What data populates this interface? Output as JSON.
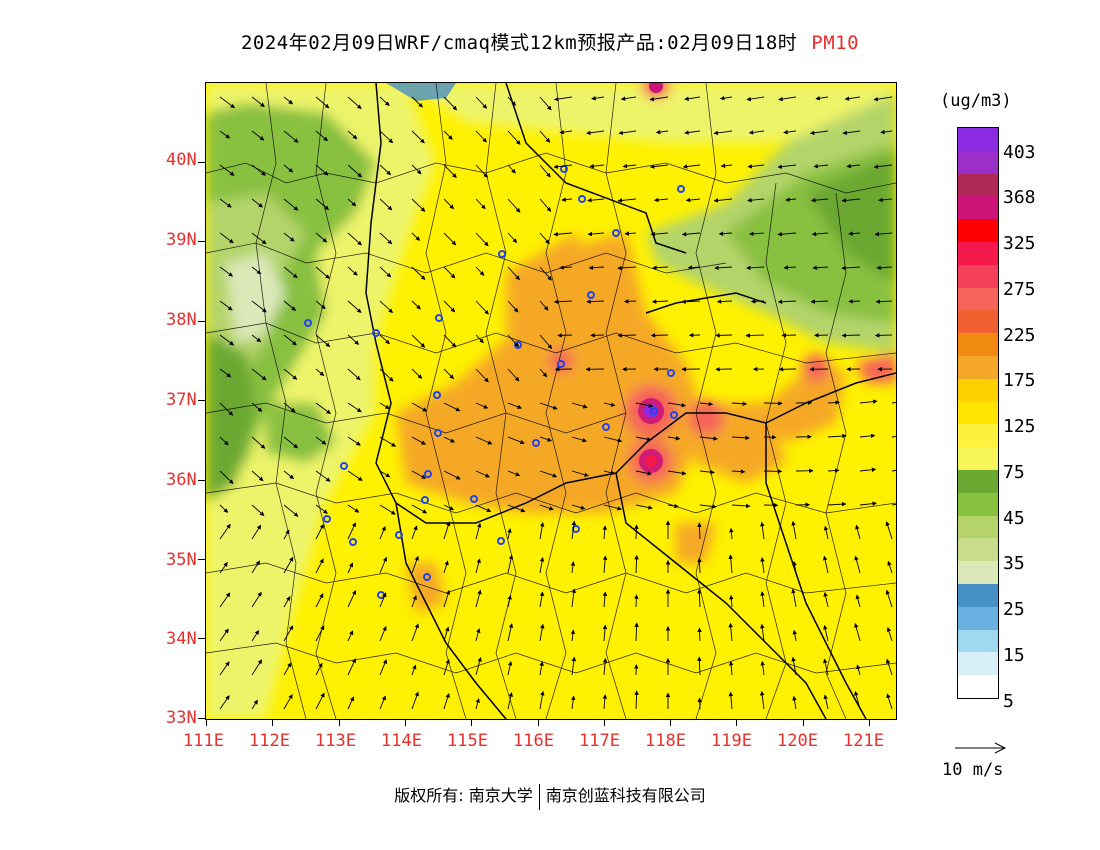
{
  "header": {
    "title": "2024年02月09日WRF/cmaq模式12km预报产品:02月09日18时",
    "variable": "PM10"
  },
  "map": {
    "lat_ticks": [
      "40N",
      "39N",
      "38N",
      "37N",
      "36N",
      "35N",
      "34N",
      "33N"
    ],
    "lon_ticks": [
      "111E",
      "112E",
      "113E",
      "114E",
      "115E",
      "116E",
      "117E",
      "118E",
      "119E",
      "120E",
      "121E"
    ],
    "extent": {
      "lon_min": 111,
      "lon_max": 121.4,
      "lat_min": 33,
      "lat_max": 41
    }
  },
  "legend": {
    "unit": "(ug/m3)",
    "labels": [
      "403",
      "368",
      "325",
      "275",
      "225",
      "175",
      "125",
      "75",
      "45",
      "35",
      "25",
      "15",
      "5"
    ],
    "colors": [
      "#8a2be2",
      "#9a30c8",
      "#b02858",
      "#cc1478",
      "#ff0000",
      "#f5184a",
      "#f5405a",
      "#f5645a",
      "#f06030",
      "#f08a10",
      "#f5a828",
      "#ffd000",
      "#ffe400",
      "#fff040",
      "#f5f55a",
      "#6aa832",
      "#88c040",
      "#b4d46a",
      "#c8dc8c",
      "#dce8b8",
      "#4890c8",
      "#6ab0e0",
      "#a0d8f0",
      "#d8eef8",
      "#ffffff"
    ]
  },
  "wind_scale": {
    "label": "10 m/s"
  },
  "footer": {
    "left": "版权所有: 南京大学",
    "right": "南京创蓝科技有限公司"
  }
}
